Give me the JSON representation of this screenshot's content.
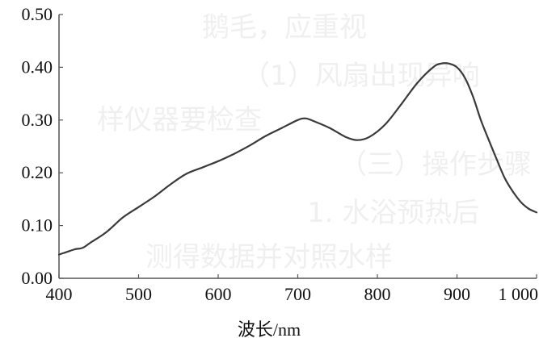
{
  "chart_data": {
    "type": "line",
    "title": "",
    "xlabel": "波长/nm",
    "ylabel": "",
    "xlim": [
      400,
      1000
    ],
    "ylim": [
      0,
      0.5
    ],
    "x_ticks": [
      400,
      500,
      600,
      700,
      800,
      900,
      1000
    ],
    "x_tick_labels": [
      "400",
      "500",
      "600",
      "700",
      "800",
      "900",
      "1 000"
    ],
    "y_ticks": [
      0,
      0.1,
      0.2,
      0.3,
      0.4,
      0.5
    ],
    "y_tick_labels": [
      "0.00",
      "0.10",
      "0.20",
      "0.30",
      "0.40",
      "0.50"
    ],
    "grid": false,
    "line_color": "#3a3a3a",
    "series": [
      {
        "x": [
          400,
          410,
          420,
          430,
          440,
          460,
          480,
          500,
          520,
          540,
          560,
          580,
          600,
          620,
          640,
          660,
          680,
          700,
          710,
          720,
          740,
          760,
          775,
          790,
          810,
          830,
          850,
          870,
          880,
          890,
          900,
          910,
          920,
          930,
          940,
          950,
          960,
          970,
          980,
          990,
          1000
        ],
        "y": [
          0.045,
          0.05,
          0.055,
          0.058,
          0.068,
          0.088,
          0.115,
          0.135,
          0.155,
          0.178,
          0.198,
          0.21,
          0.222,
          0.236,
          0.252,
          0.27,
          0.285,
          0.3,
          0.303,
          0.298,
          0.285,
          0.268,
          0.262,
          0.268,
          0.292,
          0.33,
          0.37,
          0.4,
          0.407,
          0.407,
          0.4,
          0.38,
          0.345,
          0.3,
          0.262,
          0.225,
          0.19,
          0.165,
          0.145,
          0.132,
          0.125
        ]
      }
    ]
  }
}
